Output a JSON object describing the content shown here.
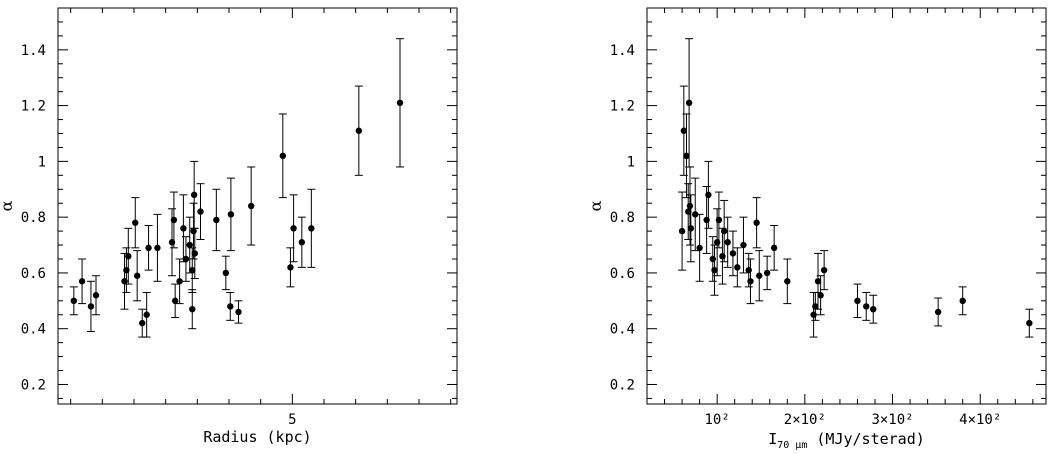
{
  "chart_data": [
    {
      "type": "scatter",
      "xlabel": "Radius (kpc)",
      "ylabel": "α",
      "ylim": [
        0.13,
        1.55
      ],
      "yticks": [
        "0.2",
        "0.4",
        "0.6",
        "0.8",
        "1",
        "1.2",
        "1.4"
      ],
      "xticks": [
        "5"
      ],
      "xrange_note": "unlabeled linear axis, only tick 5 labeled",
      "xlim": [
        1.3,
        7.6
      ],
      "points": [
        {
          "x": 1.55,
          "y": 0.5,
          "err": 0.05
        },
        {
          "x": 1.68,
          "y": 0.57,
          "err": 0.08
        },
        {
          "x": 1.82,
          "y": 0.48,
          "err": 0.09
        },
        {
          "x": 1.9,
          "y": 0.52,
          "err": 0.07
        },
        {
          "x": 2.35,
          "y": 0.57,
          "err": 0.1
        },
        {
          "x": 2.38,
          "y": 0.61,
          "err": 0.08
        },
        {
          "x": 2.41,
          "y": 0.66,
          "err": 0.1
        },
        {
          "x": 2.52,
          "y": 0.78,
          "err": 0.09
        },
        {
          "x": 2.55,
          "y": 0.59,
          "err": 0.09
        },
        {
          "x": 2.63,
          "y": 0.42,
          "err": 0.05
        },
        {
          "x": 2.7,
          "y": 0.45,
          "err": 0.08
        },
        {
          "x": 2.73,
          "y": 0.69,
          "err": 0.08
        },
        {
          "x": 2.87,
          "y": 0.69,
          "err": 0.12
        },
        {
          "x": 3.1,
          "y": 0.71,
          "err": 0.12
        },
        {
          "x": 3.13,
          "y": 0.79,
          "err": 0.1
        },
        {
          "x": 3.15,
          "y": 0.5,
          "err": 0.06
        },
        {
          "x": 3.22,
          "y": 0.57,
          "err": 0.08
        },
        {
          "x": 3.28,
          "y": 0.76,
          "err": 0.12
        },
        {
          "x": 3.32,
          "y": 0.65,
          "err": 0.08
        },
        {
          "x": 3.38,
          "y": 0.7,
          "err": 0.1
        },
        {
          "x": 3.42,
          "y": 0.61,
          "err": 0.08
        },
        {
          "x": 3.45,
          "y": 0.88,
          "err": 0.12
        },
        {
          "x": 3.44,
          "y": 0.75,
          "err": 0.1
        },
        {
          "x": 3.46,
          "y": 0.67,
          "err": 0.09
        },
        {
          "x": 3.42,
          "y": 0.47,
          "err": 0.07
        },
        {
          "x": 3.55,
          "y": 0.82,
          "err": 0.1
        },
        {
          "x": 3.8,
          "y": 0.79,
          "err": 0.11
        },
        {
          "x": 3.95,
          "y": 0.6,
          "err": 0.06
        },
        {
          "x": 4.02,
          "y": 0.48,
          "err": 0.05
        },
        {
          "x": 4.03,
          "y": 0.81,
          "err": 0.13
        },
        {
          "x": 4.15,
          "y": 0.46,
          "err": 0.04
        },
        {
          "x": 4.35,
          "y": 0.84,
          "err": 0.14
        },
        {
          "x": 4.85,
          "y": 1.02,
          "err": 0.15
        },
        {
          "x": 4.97,
          "y": 0.62,
          "err": 0.07
        },
        {
          "x": 5.02,
          "y": 0.76,
          "err": 0.12
        },
        {
          "x": 5.15,
          "y": 0.71,
          "err": 0.09
        },
        {
          "x": 5.3,
          "y": 0.76,
          "err": 0.14
        },
        {
          "x": 6.05,
          "y": 1.11,
          "err": 0.16
        },
        {
          "x": 6.7,
          "y": 1.21,
          "err": 0.23
        }
      ]
    },
    {
      "type": "scatter",
      "xlabel": "I",
      "xlabel_sub": "70 μm",
      "xlabel_unit": "(MJy/sterad)",
      "ylabel": "α",
      "ylim": [
        0.13,
        1.55
      ],
      "yticks": [
        "0.2",
        "0.4",
        "0.6",
        "0.8",
        "1",
        "1.2",
        "1.4"
      ],
      "xticks": [
        "10²",
        "2×10²",
        "3×10²",
        "4×10²"
      ],
      "xlim": [
        20,
        475
      ],
      "points": [
        {
          "x": 60,
          "y": 0.75,
          "err": 0.14
        },
        {
          "x": 62,
          "y": 1.11,
          "err": 0.16
        },
        {
          "x": 65,
          "y": 1.02,
          "err": 0.15
        },
        {
          "x": 67,
          "y": 0.82,
          "err": 0.1
        },
        {
          "x": 68,
          "y": 1.21,
          "err": 0.23
        },
        {
          "x": 69,
          "y": 0.84,
          "err": 0.14
        },
        {
          "x": 70,
          "y": 0.76,
          "err": 0.12
        },
        {
          "x": 75,
          "y": 0.81,
          "err": 0.13
        },
        {
          "x": 80,
          "y": 0.69,
          "err": 0.12
        },
        {
          "x": 88,
          "y": 0.79,
          "err": 0.12
        },
        {
          "x": 90,
          "y": 0.88,
          "err": 0.12
        },
        {
          "x": 95,
          "y": 0.65,
          "err": 0.08
        },
        {
          "x": 97,
          "y": 0.61,
          "err": 0.09
        },
        {
          "x": 100,
          "y": 0.71,
          "err": 0.12
        },
        {
          "x": 102,
          "y": 0.79,
          "err": 0.1
        },
        {
          "x": 106,
          "y": 0.66,
          "err": 0.1
        },
        {
          "x": 108,
          "y": 0.75,
          "err": 0.11
        },
        {
          "x": 112,
          "y": 0.71,
          "err": 0.09
        },
        {
          "x": 118,
          "y": 0.67,
          "err": 0.08
        },
        {
          "x": 123,
          "y": 0.62,
          "err": 0.07
        },
        {
          "x": 130,
          "y": 0.7,
          "err": 0.1
        },
        {
          "x": 136,
          "y": 0.61,
          "err": 0.06
        },
        {
          "x": 138,
          "y": 0.57,
          "err": 0.08
        },
        {
          "x": 145,
          "y": 0.78,
          "err": 0.09
        },
        {
          "x": 148,
          "y": 0.59,
          "err": 0.09
        },
        {
          "x": 157,
          "y": 0.6,
          "err": 0.06
        },
        {
          "x": 165,
          "y": 0.69,
          "err": 0.08
        },
        {
          "x": 180,
          "y": 0.57,
          "err": 0.08
        },
        {
          "x": 210,
          "y": 0.45,
          "err": 0.08
        },
        {
          "x": 212,
          "y": 0.48,
          "err": 0.05
        },
        {
          "x": 215,
          "y": 0.57,
          "err": 0.1
        },
        {
          "x": 218,
          "y": 0.52,
          "err": 0.07
        },
        {
          "x": 222,
          "y": 0.61,
          "err": 0.07
        },
        {
          "x": 260,
          "y": 0.5,
          "err": 0.06
        },
        {
          "x": 270,
          "y": 0.48,
          "err": 0.05
        },
        {
          "x": 278,
          "y": 0.47,
          "err": 0.05
        },
        {
          "x": 352,
          "y": 0.46,
          "err": 0.05
        },
        {
          "x": 380,
          "y": 0.5,
          "err": 0.05
        },
        {
          "x": 456,
          "y": 0.42,
          "err": 0.05
        }
      ]
    }
  ]
}
